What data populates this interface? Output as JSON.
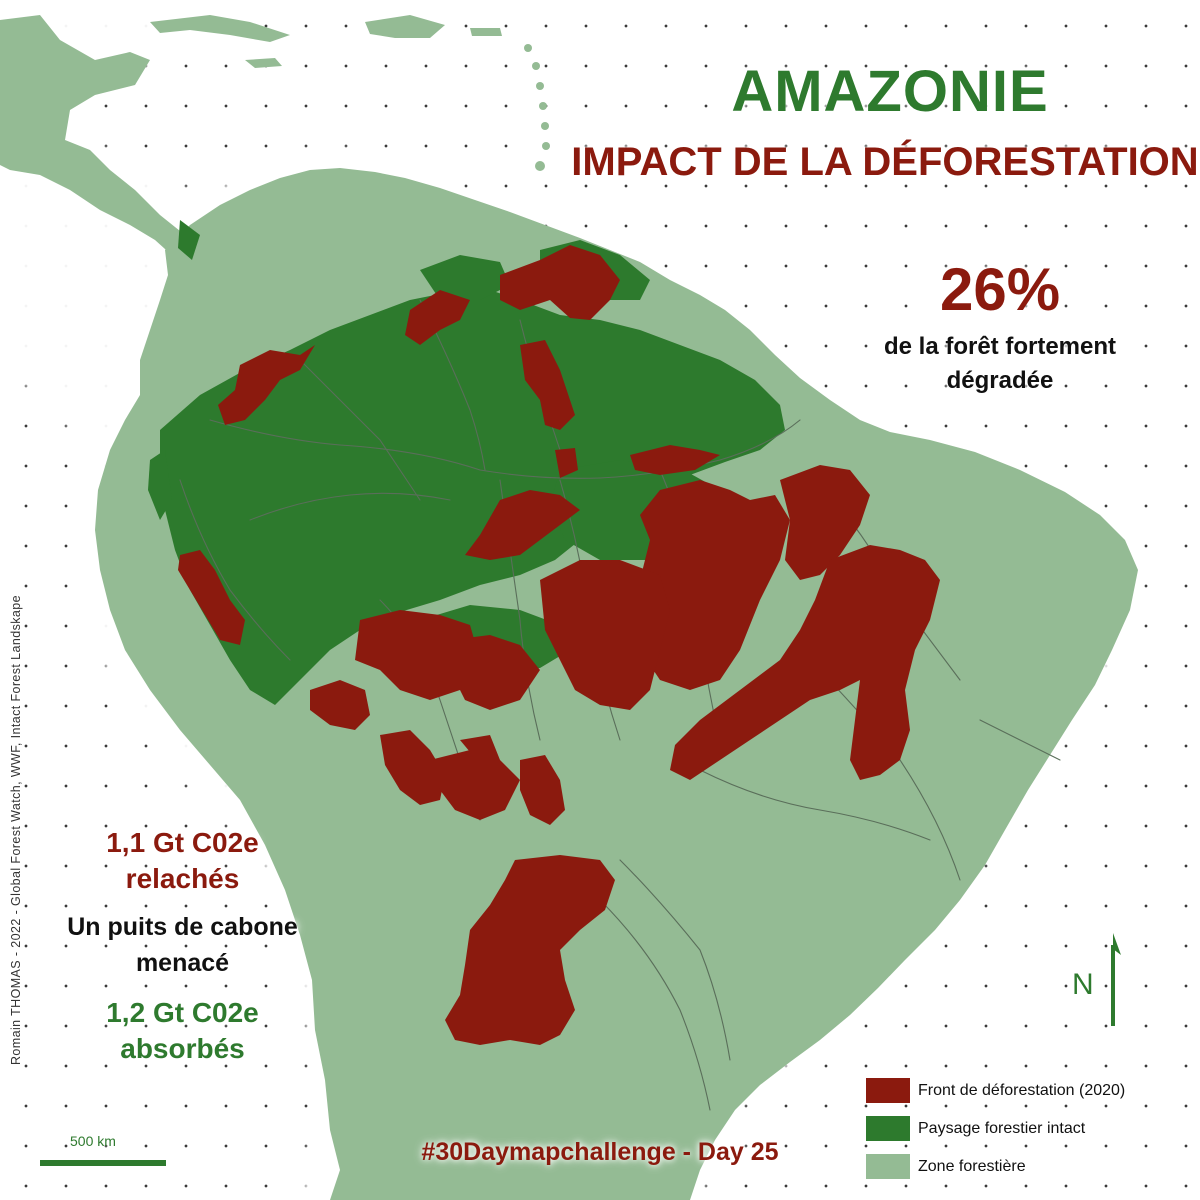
{
  "map": {
    "title": "AMAZONIE",
    "subtitle": "IMPACT DE LA DÉFORESTATION",
    "stat": {
      "value": "26%",
      "caption_line1": "de la forêt fortement",
      "caption_line2": "dégradée"
    },
    "carbon": {
      "released_line1": "1,1 Gt C02e",
      "released_line2": "relachés",
      "threat_line1": "Un puits de cabone",
      "threat_line2": "menacé",
      "absorbed_line1": "1,2 Gt C02e",
      "absorbed_line2": "absorbés"
    },
    "credit": "Romain THOMAS - 2022 - Global Forest Watch, WWF, Intact Forest Landskape",
    "hashtag": "#30Daymapchallenge - Day 25",
    "scale_label": "500 km",
    "north_label": "N",
    "legend": [
      {
        "label": "Front de déforestation (2020)",
        "color": "#8b1a0e"
      },
      {
        "label": "Paysage forestier intact",
        "color": "#2d7a2d"
      },
      {
        "label": "Zone forestière",
        "color": "#94bb94"
      }
    ],
    "colors": {
      "land": "#94bb94",
      "intact_forest": "#2d7a2d",
      "deforestation_front": "#8b1a0e",
      "rivers": "#5a6e5a",
      "background": "#ffffff"
    }
  }
}
